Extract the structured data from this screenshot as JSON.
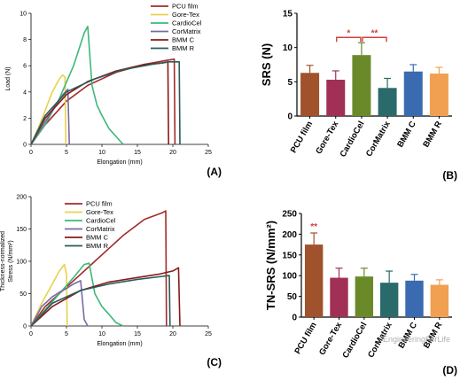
{
  "colors": {
    "pcu": "#a52a2a",
    "goretex": "#e8d24a",
    "cardiocel": "#3cb87a",
    "cormatrix": "#7a6aa8",
    "bmmc": "#8a1a1a",
    "bmmr": "#2a5a5a",
    "bar_pcu": "#a0522d",
    "bar_gore": "#a03055",
    "bar_cardio": "#6a8a2a",
    "bar_cor": "#2a6a6a",
    "bar_bmmc": "#3a6ab0",
    "bar_bmmr": "#f0a050",
    "sig": "#d0403a"
  },
  "watermark": "EngineeringForLife",
  "chart_data": [
    {
      "type": "line",
      "panel_label": "(A)",
      "xlabel": "Elongation (mm)",
      "ylabel": "Load (N)",
      "xlim": [
        0,
        25
      ],
      "ylim": [
        0,
        10
      ],
      "xticks": [
        0,
        5,
        10,
        15,
        20,
        25
      ],
      "yticks": [
        0,
        2,
        4,
        6,
        8,
        10
      ],
      "legend_position": "top-right",
      "series": [
        {
          "name": "PCU film",
          "color_key": "pcu",
          "x": [
            0,
            2,
            5,
            8,
            12,
            16,
            19,
            20.2,
            20.3
          ],
          "y": [
            0,
            1.5,
            3.3,
            4.5,
            5.5,
            6.1,
            6.4,
            6.5,
            0
          ]
        },
        {
          "name": "Gore-Tex",
          "color_key": "goretex",
          "x": [
            0,
            1,
            2,
            3,
            4,
            4.5,
            4.8,
            4.9
          ],
          "y": [
            0,
            1.2,
            2.6,
            4,
            5,
            5.3,
            5.1,
            0
          ]
        },
        {
          "name": "CardioCel",
          "color_key": "cardiocel",
          "x": [
            0,
            2,
            4,
            6,
            7.5,
            8,
            8.6,
            9.3,
            10,
            11,
            12.5,
            13
          ],
          "y": [
            0,
            1.5,
            3.5,
            6,
            8.5,
            9,
            4.5,
            3,
            2.2,
            1.2,
            0.3,
            0
          ]
        },
        {
          "name": "CorMatrix",
          "color_key": "cormatrix",
          "x": [
            0,
            1.5,
            3,
            4.5,
            5.2,
            5.4
          ],
          "y": [
            0,
            1.3,
            2.6,
            3.8,
            4.2,
            0
          ]
        },
        {
          "name": "BMM C",
          "color_key": "bmmc",
          "x": [
            0,
            2,
            5,
            8,
            12,
            16,
            18.5,
            19.3,
            19.4
          ],
          "y": [
            0,
            2,
            3.8,
            4.8,
            5.6,
            6.1,
            6.2,
            6.3,
            0
          ]
        },
        {
          "name": "BMM R",
          "color_key": "bmmr",
          "x": [
            0,
            2,
            5,
            9,
            13,
            17,
            19.5,
            20.9,
            21
          ],
          "y": [
            0,
            2.2,
            4,
            5,
            5.7,
            6.1,
            6.3,
            6.3,
            0
          ]
        }
      ]
    },
    {
      "type": "bar",
      "panel_label": "(B)",
      "ylabel": "SRS (N)",
      "ylim": [
        0,
        15
      ],
      "yticks": [
        0,
        5,
        10,
        15
      ],
      "categories": [
        "PCU film",
        "Gore-Tex",
        "CardioCel",
        "CorMatrix",
        "BMM C",
        "BMM R"
      ],
      "values": [
        6.3,
        5.3,
        8.9,
        4.1,
        6.5,
        6.2
      ],
      "errors": [
        1.1,
        1.3,
        1.8,
        1.4,
        1.0,
        0.9
      ],
      "bar_color_keys": [
        "bar_pcu",
        "bar_gore",
        "bar_cardio",
        "bar_cor",
        "bar_bmmc",
        "bar_bmmr"
      ],
      "significance": [
        {
          "from": 1,
          "to": 2,
          "label": "*"
        },
        {
          "from": 2,
          "to": 3,
          "label": "**"
        }
      ]
    },
    {
      "type": "line",
      "panel_label": "(C)",
      "xlabel": "Elongation (mm)",
      "ylabel_lines": [
        "Thickness-normalized",
        "Stress (N/mm²)"
      ],
      "xlim": [
        0,
        25
      ],
      "ylim": [
        0,
        200
      ],
      "xticks": [
        0,
        5,
        10,
        15,
        20,
        25
      ],
      "yticks": [
        0,
        50,
        100,
        150,
        200
      ],
      "legend_position": "top-left",
      "series": [
        {
          "name": "PCU film",
          "color_key": "pcu",
          "x": [
            0,
            2,
            5,
            9,
            13,
            16,
            18.5,
            19,
            19.1
          ],
          "y": [
            0,
            30,
            60,
            100,
            140,
            165,
            175,
            178,
            0
          ]
        },
        {
          "name": "Gore-Tex",
          "color_key": "goretex",
          "x": [
            0,
            1.5,
            3,
            4,
            4.7,
            5,
            5.1
          ],
          "y": [
            0,
            35,
            65,
            85,
            95,
            80,
            0
          ]
        },
        {
          "name": "CardioCel",
          "color_key": "cardiocel",
          "x": [
            0,
            2,
            4,
            6,
            7.5,
            8.2,
            9,
            10,
            11,
            12,
            13
          ],
          "y": [
            0,
            25,
            50,
            75,
            95,
            97,
            50,
            30,
            18,
            5,
            0
          ]
        },
        {
          "name": "CorMatrix",
          "color_key": "cormatrix",
          "x": [
            0,
            1.5,
            3,
            4,
            5,
            6,
            7,
            7.5,
            8
          ],
          "y": [
            0,
            30,
            45,
            52,
            58,
            65,
            70,
            10,
            0
          ]
        },
        {
          "name": "BMM C",
          "color_key": "bmmc",
          "x": [
            0,
            3,
            7,
            11,
            15,
            18,
            20,
            20.8,
            21
          ],
          "y": [
            0,
            30,
            55,
            68,
            75,
            80,
            85,
            90,
            0
          ]
        },
        {
          "name": "BMM R",
          "color_key": "bmmr",
          "x": [
            0,
            3,
            7,
            11,
            15,
            18,
            19.5,
            19.6
          ],
          "y": [
            0,
            35,
            55,
            65,
            72,
            76,
            78,
            0
          ]
        }
      ]
    },
    {
      "type": "bar",
      "panel_label": "(D)",
      "ylabel": "TN-SRS (N/mm²)",
      "ylim": [
        0,
        250
      ],
      "yticks": [
        0,
        50,
        100,
        150,
        200,
        250
      ],
      "categories": [
        "PCU film",
        "Gore-Tex",
        "CardioCel",
        "CorMatrix",
        "BMM C",
        "BMM R"
      ],
      "values": [
        175,
        95,
        98,
        83,
        88,
        78
      ],
      "errors": [
        28,
        23,
        20,
        28,
        15,
        12
      ],
      "bar_color_keys": [
        "bar_pcu",
        "bar_gore",
        "bar_cardio",
        "bar_cor",
        "bar_bmmc",
        "bar_bmmr"
      ],
      "significance_labels": [
        {
          "index": 0,
          "label": "**"
        }
      ]
    }
  ]
}
